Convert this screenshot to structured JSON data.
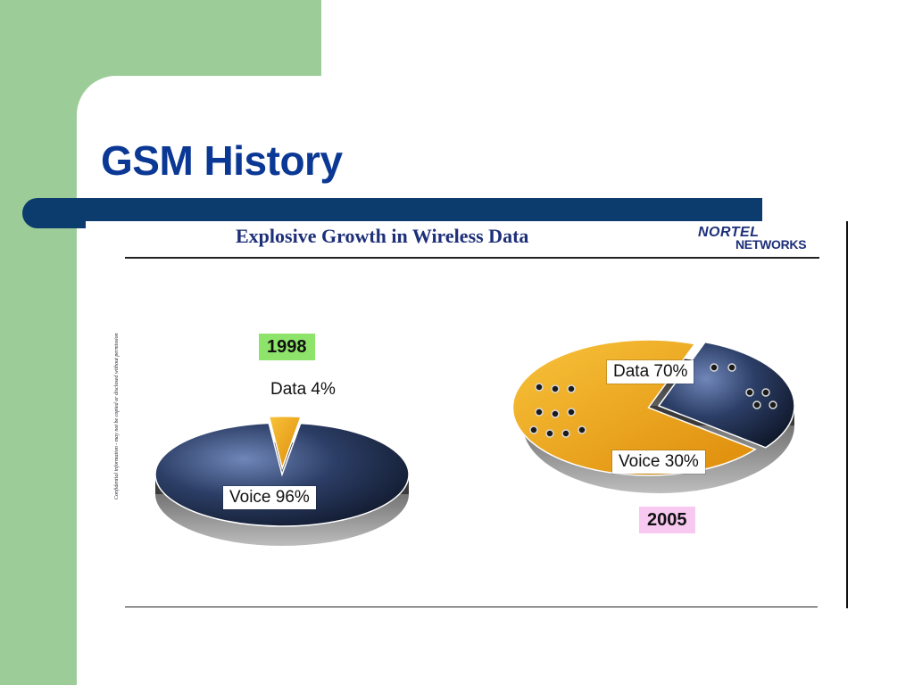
{
  "slide": {
    "title": "GSM History",
    "colors": {
      "sidebar_green": "#9ccc97",
      "title_blue": "#0a3894",
      "bar_navy": "#0c3b6e"
    }
  },
  "figure": {
    "title": "Explosive Growth in Wireless Data",
    "logo_line1": "NORTEL",
    "logo_line2": "NETWORKS",
    "side_note": "Confidential information - may not be copied or disclosed without permission"
  },
  "chart_data": [
    {
      "type": "pie",
      "title": "1998",
      "title_color": "#8ee36b",
      "slices": [
        {
          "label": "Data 4%",
          "category": "Data",
          "value": 4,
          "color": "#e8a20c"
        },
        {
          "label": "Voice 96%",
          "category": "Voice",
          "value": 96,
          "color": "#1d2a4a"
        }
      ]
    },
    {
      "type": "pie",
      "title": "2005",
      "title_color": "#f7c8f0",
      "slices": [
        {
          "label": "Data 70%",
          "category": "Data",
          "value": 70,
          "color": "#f2a619"
        },
        {
          "label": "Voice 30%",
          "category": "Voice",
          "value": 30,
          "color": "#1d2a4a"
        }
      ]
    }
  ]
}
